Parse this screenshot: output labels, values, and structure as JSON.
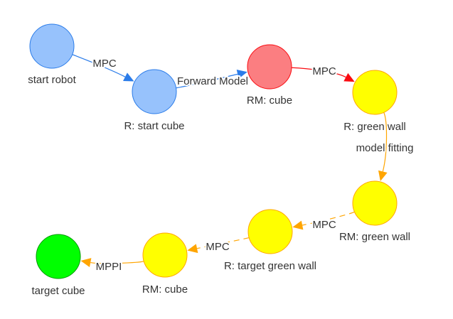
{
  "nodes": [
    {
      "id": "start_robot",
      "label": "start robot",
      "fill": "#97c2fc",
      "stroke": "#2b7ce9"
    },
    {
      "id": "r_start_cube",
      "label": "R: start cube",
      "fill": "#97c2fc",
      "stroke": "#2b7ce9"
    },
    {
      "id": "rm_cube_1",
      "label": "RM: cube",
      "fill": "#fb7e81",
      "stroke": "#fa0a10"
    },
    {
      "id": "r_green_wall",
      "label": "R: green wall",
      "fill": "#ffff00",
      "stroke": "#ffa500"
    },
    {
      "id": "rm_green_wall",
      "label": "RM: green wall",
      "fill": "#ffff00",
      "stroke": "#ffa500"
    },
    {
      "id": "r_target_green_wall",
      "label": "R: target green wall",
      "fill": "#ffff00",
      "stroke": "#ffa500"
    },
    {
      "id": "rm_cube_2",
      "label": "RM: cube",
      "fill": "#ffff00",
      "stroke": "#ffa500"
    },
    {
      "id": "target_cube",
      "label": "target cube",
      "fill": "#00ff00",
      "stroke": "#009900"
    }
  ],
  "edges": [
    {
      "from": "start_robot",
      "to": "r_start_cube",
      "label": "MPC",
      "color": "#2b7ce9",
      "dashed": false
    },
    {
      "from": "r_start_cube",
      "to": "rm_cube_1",
      "label": "Forward Model",
      "color": "#2b7ce9",
      "dashed": false
    },
    {
      "from": "rm_cube_1",
      "to": "r_green_wall",
      "label": "MPC",
      "color": "#fa0a10",
      "dashed": false
    },
    {
      "from": "r_green_wall",
      "to": "rm_green_wall",
      "label": "model fitting",
      "color": "#ffa500",
      "dashed": false
    },
    {
      "from": "rm_green_wall",
      "to": "r_target_green_wall",
      "label": "MPC",
      "color": "#ffa500",
      "dashed": true
    },
    {
      "from": "r_target_green_wall",
      "to": "rm_cube_2",
      "label": "MPC",
      "color": "#ffa500",
      "dashed": true
    },
    {
      "from": "rm_cube_2",
      "to": "target_cube",
      "label": "MPPI",
      "color": "#ffa500",
      "dashed": false
    }
  ]
}
